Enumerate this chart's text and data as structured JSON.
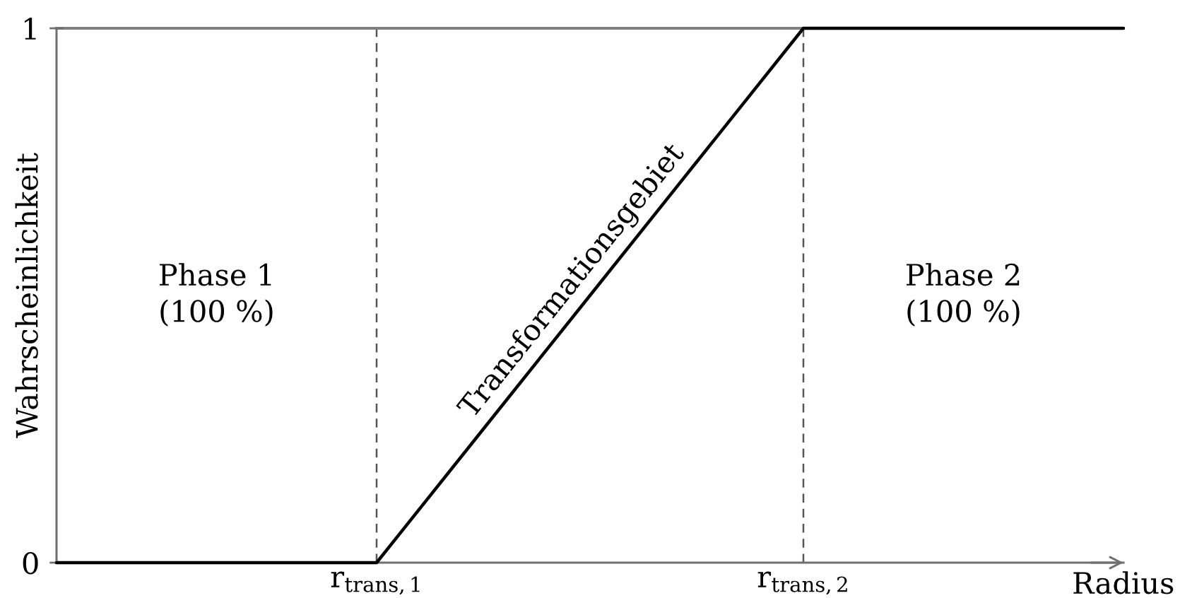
{
  "chart_data": {
    "type": "line",
    "xlabel": "Radius",
    "ylabel": "Wahrscheinlichkeit",
    "categories": [
      null,
      null,
      null,
      "r$_{trans,1}$",
      null,
      null,
      null,
      "r$_{trans,2}$",
      null,
      null,
      null
    ],
    "series": [
      {
        "color": "#000000",
        "values": [
          0,
          0,
          0,
          0,
          0.25,
          0.5,
          0.75,
          1,
          1,
          1,
          1
        ]
      }
    ],
    "ylim": [
      0,
      1
    ],
    "yticks": [
      0,
      1
    ],
    "ref_lines": [
      {
        "axis": "x",
        "value": "r$_{trans,1}$",
        "color": "#555555",
        "line_style": "dashed"
      },
      {
        "axis": "x",
        "value": "r$_{trans,2}$",
        "color": "#555555",
        "line_style": "dashed"
      },
      {
        "axis": "y",
        "value": 1,
        "color": "#808080",
        "line_style": "solid"
      }
    ],
    "annotations": [
      "Phase 1\n(100 %)",
      "Transformationsgebiet",
      "Phase 2\n(100 %)"
    ],
    "grid": false
  }
}
